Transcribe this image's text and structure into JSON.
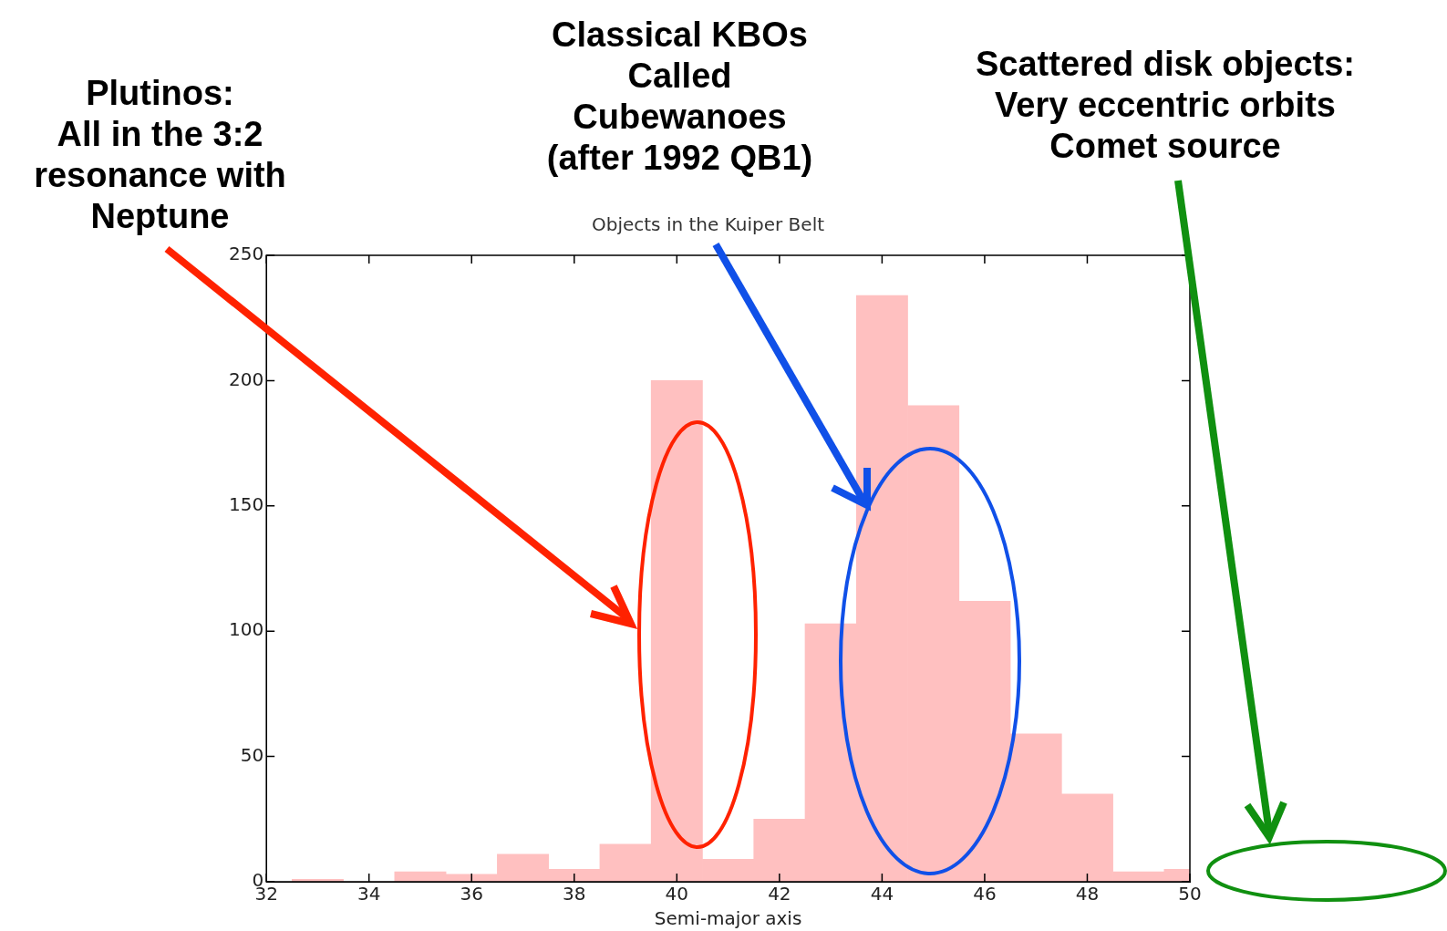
{
  "chart_data": {
    "type": "histogram",
    "title": "Objects in the Kuiper Belt",
    "xlabel": "Semi-major axis",
    "bins": [
      32.5,
      33.5,
      34.5,
      35.5,
      36.5,
      37.5,
      38.5,
      39.5,
      40.5,
      41.5,
      42.5,
      43.5,
      44.5,
      45.5,
      46.5,
      47.5,
      48.5,
      49.5,
      50.5
    ],
    "values": [
      1,
      0,
      4,
      3,
      11,
      5,
      15,
      200,
      9,
      25,
      103,
      234,
      190,
      112,
      59,
      35,
      4,
      5
    ],
    "color": "#ffc0c0",
    "xlim": [
      32,
      50
    ],
    "xticks": [
      32,
      34,
      36,
      38,
      40,
      42,
      44,
      46,
      48,
      50
    ],
    "ylim": [
      0,
      250
    ],
    "yticks": [
      0,
      50,
      100,
      150,
      200,
      250
    ],
    "grid": false,
    "legend": false,
    "annotations": [
      "Plutinos:\nAll in the 3:2\nresonance with\nNeptune",
      "Classical KBOs\nCalled\nCubewanoes\n(after 1992 QB1)",
      "Scattered disk objects:\nVery eccentric orbits\nComet source"
    ]
  }
}
